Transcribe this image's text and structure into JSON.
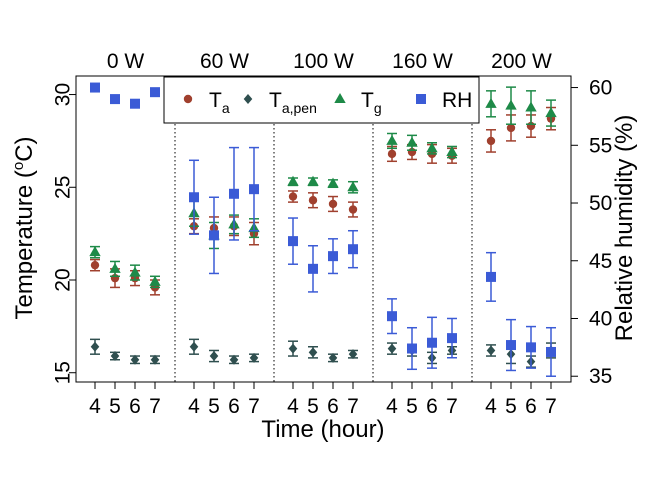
{
  "chart_data": {
    "type": "scatter",
    "panels": [
      "0 W",
      "60 W",
      "100 W",
      "160 W",
      "200 W"
    ],
    "x_ticks": [
      4,
      5,
      6,
      7
    ],
    "xlabel": "Time (hour)",
    "ylabel_left": {
      "main": "Temperature (",
      "sup": "o",
      "end": "C)"
    },
    "ylabel_right": "Relative humidity (%)",
    "ylim_left": [
      14.5,
      31
    ],
    "ylim_right": [
      34.5,
      61
    ],
    "yticks_left": [
      15,
      20,
      25,
      30
    ],
    "yticks_right": [
      35,
      40,
      45,
      50,
      55,
      60
    ],
    "legend": {
      "position": "top",
      "entries": [
        {
          "key": "Ta",
          "main": "T",
          "sub": "a"
        },
        {
          "key": "Tapen",
          "main": "T",
          "sub": "a,pen"
        },
        {
          "key": "Tg",
          "main": "T",
          "sub": "g"
        },
        {
          "key": "RH",
          "main": "RH",
          "sub": ""
        }
      ]
    },
    "series": [
      {
        "key": "Ta",
        "axis": "left",
        "marker": "circle",
        "color": "#a0402e",
        "values": [
          [
            [
              20.8,
              0.3
            ],
            [
              20.1,
              0.5
            ],
            [
              20.1,
              0.4
            ],
            [
              19.6,
              0.4
            ]
          ],
          [
            [
              22.9,
              0.4
            ],
            [
              22.8,
              0.6
            ],
            [
              22.9,
              0.5
            ],
            [
              22.5,
              0.6
            ]
          ],
          [
            [
              24.5,
              0.3
            ],
            [
              24.3,
              0.4
            ],
            [
              24.1,
              0.4
            ],
            [
              23.8,
              0.4
            ]
          ],
          [
            [
              26.8,
              0.4
            ],
            [
              26.9,
              0.4
            ],
            [
              26.8,
              0.5
            ],
            [
              26.7,
              0.4
            ]
          ],
          [
            [
              27.5,
              0.6
            ],
            [
              28.2,
              0.7
            ],
            [
              28.3,
              0.6
            ],
            [
              28.7,
              0.6
            ]
          ]
        ]
      },
      {
        "key": "Tapen",
        "axis": "left",
        "marker": "diamond",
        "color": "#2f4f4f",
        "values": [
          [
            [
              16.4,
              0.4
            ],
            [
              15.9,
              0.2
            ],
            [
              15.7,
              0.2
            ],
            [
              15.7,
              0.2
            ]
          ],
          [
            [
              16.4,
              0.4
            ],
            [
              15.9,
              0.3
            ],
            [
              15.7,
              0.2
            ],
            [
              15.8,
              0.2
            ]
          ],
          [
            [
              16.3,
              0.4
            ],
            [
              16.1,
              0.3
            ],
            [
              15.8,
              0.2
            ],
            [
              16.0,
              0.2
            ]
          ],
          [
            [
              16.3,
              0.3
            ],
            [
              16.2,
              0.3
            ],
            [
              15.8,
              0.3
            ],
            [
              16.2,
              0.2
            ]
          ],
          [
            [
              16.2,
              0.3
            ],
            [
              16.0,
              0.5
            ],
            [
              15.6,
              0.3
            ],
            [
              16.2,
              0.4
            ]
          ]
        ]
      },
      {
        "key": "Tg",
        "axis": "left",
        "marker": "triangle",
        "color": "#1e8a48",
        "values": [
          [
            [
              21.5,
              0.3
            ],
            [
              20.6,
              0.4
            ],
            [
              20.4,
              0.4
            ],
            [
              19.9,
              0.3
            ]
          ],
          [
            [
              23.6,
              0.7
            ],
            [
              22.4,
              0.7
            ],
            [
              23.0,
              0.5
            ],
            [
              22.8,
              0.5
            ]
          ],
          [
            [
              25.3,
              0.2
            ],
            [
              25.3,
              0.2
            ],
            [
              25.2,
              0.2
            ],
            [
              25.0,
              0.3
            ]
          ],
          [
            [
              27.5,
              0.4
            ],
            [
              27.4,
              0.4
            ],
            [
              27.1,
              0.3
            ],
            [
              26.9,
              0.3
            ]
          ],
          [
            [
              29.5,
              0.7
            ],
            [
              29.4,
              1.0
            ],
            [
              29.3,
              0.9
            ],
            [
              29.0,
              0.7
            ]
          ]
        ]
      },
      {
        "key": "RH",
        "axis": "right",
        "marker": "square",
        "color": "#3b5bd6",
        "values": [
          [
            [
              60.0,
              0
            ],
            [
              59.0,
              0
            ],
            [
              58.6,
              0
            ],
            [
              59.6,
              0
            ]
          ],
          [
            [
              50.5,
              3.2
            ],
            [
              47.2,
              3.3
            ],
            [
              50.8,
              4.0
            ],
            [
              51.2,
              3.6
            ]
          ],
          [
            [
              46.7,
              2.0
            ],
            [
              44.3,
              2.0
            ],
            [
              45.4,
              1.5
            ],
            [
              46.0,
              1.6
            ]
          ],
          [
            [
              40.2,
              1.5
            ],
            [
              37.4,
              1.8
            ],
            [
              37.9,
              2.2
            ],
            [
              38.3,
              1.7
            ]
          ],
          [
            [
              43.6,
              2.1
            ],
            [
              37.7,
              2.2
            ],
            [
              37.5,
              1.8
            ],
            [
              37.1,
              2.1
            ]
          ]
        ]
      }
    ]
  }
}
